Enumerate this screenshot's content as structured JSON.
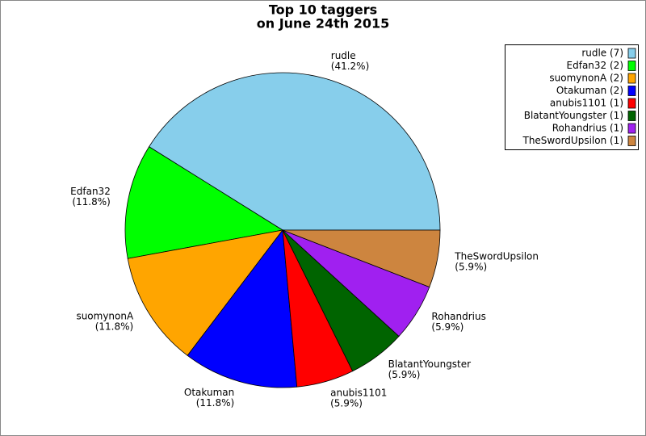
{
  "chart_data": {
    "type": "pie",
    "title": "Top 10 taggers",
    "subtitle": "on June 24th 2015",
    "categories": [
      "rudle",
      "Edfan32",
      "suomynonA",
      "Otakuman",
      "anubis1101",
      "BlatantYoungster",
      "Rohandrius",
      "TheSwordUpsilon"
    ],
    "values": [
      41.2,
      11.8,
      11.8,
      11.8,
      5.9,
      5.9,
      5.9,
      5.9
    ],
    "value_labels": [
      "(41.2%)",
      "(11.8%)",
      "(11.8%)",
      "(11.8%)",
      "(5.9%)",
      "(5.9%)",
      "(5.9%)",
      "(5.9%)"
    ],
    "legend_labels": [
      "rudle (7)",
      "Edfan32 (2)",
      "suomynonA (2)",
      "Otakuman (2)",
      "anubis1101 (1)",
      "BlatantYoungster (1)",
      "Rohandrius (1)",
      "TheSwordUpsilon (1)"
    ],
    "colors": [
      "#87ceeb",
      "#00ff00",
      "#ffa500",
      "#0000ff",
      "#ff0000",
      "#006400",
      "#a020f0",
      "#cd853f"
    ],
    "legend": "upper right"
  }
}
